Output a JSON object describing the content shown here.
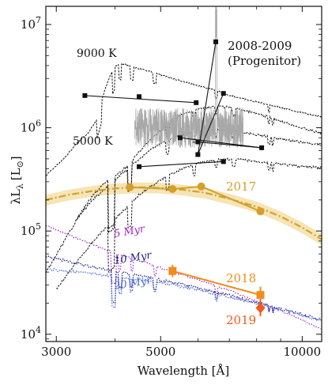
{
  "chart_data": {
    "type": "line",
    "xlabel": "Wavelength [Å]",
    "ylabel": "λL",
    "ylabel_sub": "λ",
    "ylabel_unit": "[L",
    "ylabel_unit_sub": "⊙",
    "ylabel_unit_close": "]",
    "xscale": "log",
    "yscale": "log",
    "xlim": [
      2850,
      11000
    ],
    "ylim": [
      8500,
      15000000
    ],
    "x_ticks": [
      {
        "value": 3000,
        "label": "3000"
      },
      {
        "value": 5000,
        "label": "5000"
      },
      {
        "value": 10000,
        "label": "10000"
      }
    ],
    "y_ticks": [
      {
        "value": 10000,
        "base": "10",
        "exp": "4"
      },
      {
        "value": 100000,
        "base": "10",
        "exp": "5"
      },
      {
        "value": 1000000,
        "base": "10",
        "exp": "6"
      },
      {
        "value": 10000000,
        "base": "10",
        "exp": "7"
      }
    ],
    "colors": {
      "black": "#111111",
      "grey": "#a8a8a8",
      "gold": "#d4a02a",
      "gold_band": "#f3dfa8",
      "orange_2018": "#f28c1e",
      "orange_2019": "#f05a1a",
      "purple_5myr": "#a020c8",
      "navy_10myr": "#1c1c8c",
      "blue_20myr": "#4a6ad8"
    },
    "series": [
      {
        "id": "progenitor",
        "points": [
          {
            "x": 3450,
            "y": 2050000
          },
          {
            "x": 4500,
            "y": 2000000
          },
          {
            "x": 5950,
            "y": 1750000
          },
          {
            "x": 4500,
            "y": 420000
          },
          {
            "x": 6800,
            "y": 470000
          },
          {
            "x": 6550,
            "y": 6800000
          },
          {
            "x": 6000,
            "y": 550000
          },
          {
            "x": 6800,
            "y": 2150000
          },
          {
            "x": 5500,
            "y": 800000
          },
          {
            "x": 6000,
            "y": 730000
          },
          {
            "x": 8200,
            "y": 640000
          }
        ],
        "segments": [
          [
            0,
            2
          ],
          [
            3,
            4
          ],
          [
            6,
            5
          ],
          [
            6,
            7
          ],
          [
            8,
            10
          ],
          [
            9,
            10
          ]
        ]
      },
      {
        "id": "2017",
        "points": [
          {
            "x": 4300,
            "y": 265000
          },
          {
            "x": 5300,
            "y": 255000
          },
          {
            "x": 6100,
            "y": 270000
          },
          {
            "x": 8150,
            "y": 155000
          }
        ]
      },
      {
        "id": "2018",
        "points": [
          {
            "x": 5300,
            "y": 41000
          },
          {
            "x": 8150,
            "y": 24000
          }
        ],
        "errors": [
          0.06,
          0.08
        ]
      },
      {
        "id": "2019",
        "points": [
          {
            "x": 8150,
            "y": 18000
          }
        ],
        "errors": [
          0.08
        ]
      }
    ],
    "model_2017": {
      "x": [
        2850,
        3200,
        3600,
        4000,
        4500,
        5000,
        5600,
        6200,
        7000,
        8000,
        9000,
        10000,
        11000
      ],
      "y": [
        200000,
        225000,
        245000,
        258000,
        265000,
        262000,
        250000,
        235000,
        205000,
        172000,
        138000,
        108000,
        83000
      ],
      "band_factor": 0.12
    },
    "model_5myr": {
      "x": [
        2850,
        3200,
        3600,
        4000,
        4500,
        5000,
        5600,
        6200,
        7000,
        8000,
        9000,
        10000,
        11000
      ],
      "y": [
        115000,
        93000,
        75000,
        62000,
        53000,
        45000,
        38000,
        32500,
        27000,
        21500,
        17200,
        14000,
        11300
      ]
    },
    "model_10myr": {
      "x": [
        2850,
        3200,
        3600,
        4000,
        4500,
        5000,
        5600,
        6200,
        7000,
        8000,
        9000,
        10000,
        11000
      ],
      "y": [
        58000,
        52000,
        46000,
        42000,
        38000,
        34500,
        31000,
        28000,
        24500,
        21000,
        18000,
        16000,
        14200
      ]
    },
    "model_20myr": {
      "x": [
        2850,
        3200,
        3600,
        4000,
        4500,
        5000,
        5600,
        6200,
        7000,
        8000,
        9000,
        10000,
        11000
      ],
      "y": [
        44000,
        42000,
        39500,
        37500,
        35000,
        32500,
        29500,
        27000,
        23500,
        20500,
        17800,
        15800,
        13800
      ]
    },
    "model_9000k": {
      "x": [
        2850,
        3100,
        3300,
        3500,
        3650,
        3700,
        3800,
        3900,
        4000,
        4100,
        4300,
        4600,
        5000,
        5500,
        6000,
        6600,
        7000,
        7600,
        8500,
        9500,
        10500,
        11000
      ],
      "y": [
        350000,
        500000,
        700000,
        900000,
        1200000,
        1600000,
        2300000,
        3200000,
        4000000,
        4300000,
        4000000,
        3700000,
        3300000,
        2900000,
        2600000,
        2300000,
        2100000,
        1900000,
        1700000,
        1500000,
        1350000,
        1300000
      ]
    },
    "model_5000k": {
      "x": [
        2850,
        3000,
        3200,
        3400,
        3600,
        3800,
        3950,
        4100,
        4300,
        4500,
        4800,
        5100,
        5500,
        6000,
        6500,
        7000,
        7500,
        8000,
        8600,
        9200,
        10000,
        11000
      ],
      "y": [
        40000,
        60000,
        100000,
        160000,
        230000,
        300000,
        330000,
        380000,
        460000,
        600000,
        820000,
        1080000,
        1350000,
        1550000,
        1650000,
        1620000,
        1520000,
        1400000,
        1280000,
        1150000,
        1020000,
        900000
      ]
    },
    "model_extra1": {
      "x": [
        3000,
        3300,
        3700,
        4100,
        4500,
        5000,
        5600,
        6200,
        6800,
        7500,
        8500,
        9500,
        11000
      ],
      "y": [
        28000,
        50000,
        95000,
        150000,
        230000,
        320000,
        420000,
        480000,
        510000,
        500000,
        470000,
        440000,
        420000
      ]
    },
    "model_extra2": {
      "x": [
        3300,
        3600,
        4000,
        4400,
        4800,
        5300,
        5900,
        6500,
        7200,
        8000,
        9000,
        10000,
        11000
      ],
      "y": [
        130000,
        210000,
        320000,
        470000,
        650000,
        820000,
        940000,
        980000,
        950000,
        880000,
        800000,
        740000,
        700000
      ]
    },
    "hst_spectrum": {
      "x_range": [
        4400,
        7500
      ],
      "y_center": 1000000
    },
    "annotations": [
      {
        "id": "label-9000k",
        "text": "9000 K"
      },
      {
        "id": "label-5000k",
        "text": "5000 K"
      },
      {
        "id": "label-progenitor-line1",
        "text": "2008-2009"
      },
      {
        "id": "label-progenitor-line2",
        "text": "(Progenitor)"
      },
      {
        "id": "label-2017",
        "text": "2017"
      },
      {
        "id": "label-2018",
        "text": "2018"
      },
      {
        "id": "label-2019",
        "text": "2019"
      },
      {
        "id": "label-5myr",
        "text": "5 Myr"
      },
      {
        "id": "label-10myr",
        "text": "10 Myr"
      },
      {
        "id": "label-20myr",
        "text": "20 Myr"
      }
    ]
  }
}
